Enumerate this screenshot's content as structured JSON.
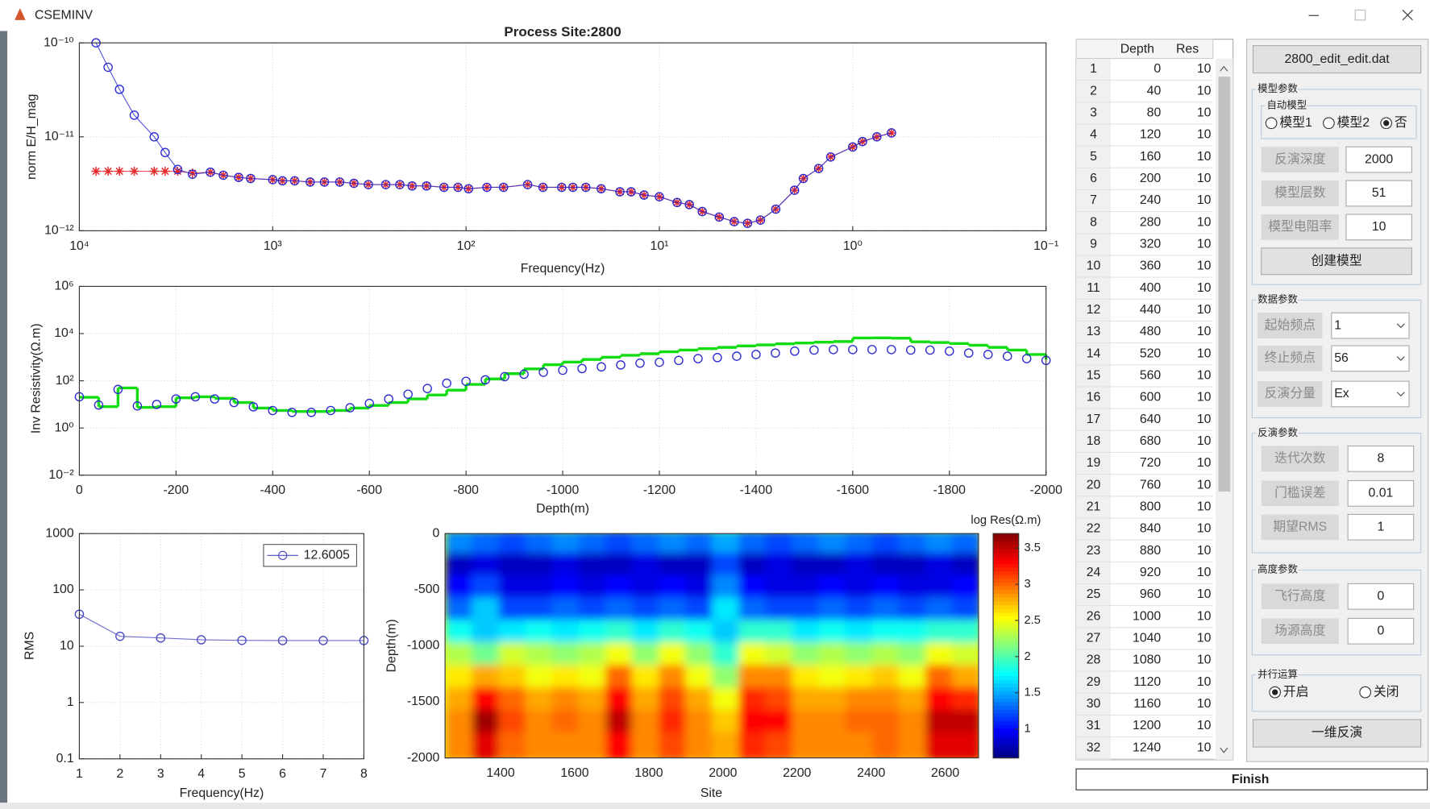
{
  "window": {
    "title": "CSEMINV"
  },
  "chart_data": [
    {
      "type": "line",
      "title": "Process Site:2800",
      "xlabel": "Frequency(Hz)",
      "ylabel": "norm E/H_mag",
      "xlog": true,
      "ylog": true,
      "grid": true,
      "xlim": [
        10000,
        0.1
      ],
      "ylim": [
        1e-12,
        1e-10
      ],
      "xticks": [
        {
          "value": 10000,
          "label": "10⁴"
        },
        {
          "value": 1000,
          "label": "10³"
        },
        {
          "value": 100,
          "label": "10²"
        },
        {
          "value": 10,
          "label": "10¹"
        },
        {
          "value": 1,
          "label": "10⁰"
        },
        {
          "value": 0.1,
          "label": "10⁻¹"
        }
      ],
      "yticks": [
        {
          "value": 1e-12,
          "label": "10⁻¹²"
        },
        {
          "value": 1e-11,
          "label": "10⁻¹¹"
        },
        {
          "value": 1e-10,
          "label": "10⁻¹⁰"
        }
      ],
      "x": [
        8200,
        7100,
        6200,
        5200,
        4100,
        3600,
        3100,
        2600,
        2100,
        1800,
        1500,
        1300,
        1000,
        890,
        770,
        640,
        540,
        450,
        380,
        320,
        260,
        220,
        190,
        160,
        130,
        110,
        97,
        78,
        64,
        48,
        40,
        32,
        28,
        24,
        20,
        16,
        14,
        12,
        10,
        8.1,
        7.0,
        6.0,
        4.9,
        4.1,
        3.5,
        3.0,
        2.5,
        2.0,
        1.8,
        1.5,
        1.3,
        1.0,
        0.89,
        0.75,
        0.63
      ],
      "series": [
        {
          "color": "#e8282b",
          "marker": "asterisk",
          "line": true,
          "values": [
            4.3e-12,
            4.3e-12,
            4.3e-12,
            4.3e-12,
            4.3e-12,
            4.3e-12,
            4.3e-12,
            4.1e-12,
            4.2e-12,
            3.9e-12,
            3.7e-12,
            3.6e-12,
            3.5e-12,
            3.4e-12,
            3.4e-12,
            3.3e-12,
            3.3e-12,
            3.3e-12,
            3.2e-12,
            3.1e-12,
            3.1e-12,
            3.1e-12,
            3e-12,
            3e-12,
            2.9e-12,
            2.9e-12,
            2.8e-12,
            2.9e-12,
            2.9e-12,
            3.1e-12,
            2.9e-12,
            2.9e-12,
            2.9e-12,
            2.9e-12,
            2.8e-12,
            2.6e-12,
            2.6e-12,
            2.4e-12,
            2.3e-12,
            2e-12,
            1.9e-12,
            1.6e-12,
            1.4e-12,
            1.25e-12,
            1.2e-12,
            1.3e-12,
            1.7e-12,
            2.7e-12,
            3.6e-12,
            4.6e-12,
            6.1e-12,
            7.8e-12,
            8.9e-12,
            1e-11,
            1.1e-11
          ]
        },
        {
          "color": "#2a2ad0",
          "marker": "circle",
          "line": true,
          "values": [
            1e-10,
            5.5e-11,
            3.2e-11,
            1.7e-11,
            1e-11,
            6.8e-12,
            4.5e-12,
            4e-12,
            4.2e-12,
            3.9e-12,
            3.7e-12,
            3.6e-12,
            3.5e-12,
            3.4e-12,
            3.4e-12,
            3.3e-12,
            3.3e-12,
            3.3e-12,
            3.2e-12,
            3.1e-12,
            3.1e-12,
            3.1e-12,
            3e-12,
            3e-12,
            2.9e-12,
            2.9e-12,
            2.8e-12,
            2.9e-12,
            2.9e-12,
            3.1e-12,
            2.9e-12,
            2.9e-12,
            2.9e-12,
            2.9e-12,
            2.8e-12,
            2.6e-12,
            2.6e-12,
            2.4e-12,
            2.3e-12,
            2e-12,
            1.9e-12,
            1.6e-12,
            1.4e-12,
            1.25e-12,
            1.2e-12,
            1.3e-12,
            1.7e-12,
            2.7e-12,
            3.6e-12,
            4.6e-12,
            6.1e-12,
            7.8e-12,
            8.9e-12,
            1e-11,
            1.1e-11
          ]
        }
      ]
    },
    {
      "type": "line",
      "xlabel": "Depth(m)",
      "ylabel": "Inv Resistivity(Ω.m)",
      "ylog": true,
      "grid": true,
      "xlim": [
        0,
        -2000
      ],
      "ylim": [
        0.01,
        1000000
      ],
      "xticks": [
        0,
        -200,
        -400,
        -600,
        -800,
        -1000,
        -1200,
        -1400,
        -1600,
        -1800,
        -2000
      ],
      "yticks": [
        {
          "value": 0.01,
          "label": "10⁻²"
        },
        {
          "value": 1,
          "label": "10⁰"
        },
        {
          "value": 100,
          "label": "10²"
        },
        {
          "value": 10000,
          "label": "10⁴"
        },
        {
          "value": 1000000,
          "label": "10⁶"
        }
      ],
      "x": [
        0,
        -40,
        -80,
        -120,
        -160,
        -200,
        -240,
        -280,
        -320,
        -360,
        -400,
        -440,
        -480,
        -520,
        -560,
        -600,
        -640,
        -680,
        -720,
        -760,
        -800,
        -840,
        -880,
        -920,
        -960,
        -1000,
        -1040,
        -1080,
        -1120,
        -1160,
        -1200,
        -1240,
        -1280,
        -1320,
        -1360,
        -1400,
        -1440,
        -1480,
        -1520,
        -1560,
        -1600,
        -1640,
        -1680,
        -1720,
        -1760,
        -1800,
        -1840,
        -1880,
        -1920,
        -1960,
        -2000
      ],
      "series": [
        {
          "color": "#11dd11",
          "step": true,
          "values": [
            20,
            8,
            50,
            7.5,
            8,
            19,
            21,
            18,
            12,
            7,
            5.5,
            5,
            5,
            5.5,
            7,
            9,
            12,
            17,
            25,
            40,
            70,
            120,
            200,
            320,
            480,
            620,
            800,
            1000,
            1200,
            1400,
            1700,
            2000,
            2300,
            2600,
            3000,
            3300,
            3700,
            4000,
            4300,
            4600,
            6500,
            6600,
            6400,
            4500,
            4200,
            3800,
            3200,
            2600,
            2000,
            1300,
            800
          ]
        },
        {
          "color": "#2a2ad0",
          "marker": "circle",
          "line": false,
          "values": [
            21,
            9.4,
            43,
            8.6,
            10,
            17,
            21,
            17,
            12,
            7.9,
            5.5,
            4.6,
            4.6,
            5.5,
            7.2,
            11,
            17,
            27,
            47,
            79,
            95,
            110,
            150,
            190,
            230,
            280,
            330,
            390,
            470,
            560,
            610,
            730,
            870,
            960,
            1100,
            1300,
            1500,
            1800,
            2000,
            2100,
            2100,
            2100,
            2100,
            2000,
            2000,
            1800,
            1500,
            1300,
            1100,
            870,
            730
          ]
        }
      ]
    },
    {
      "type": "line",
      "xlabel": "Frequency(Hz)",
      "ylabel": "RMS",
      "ylog": true,
      "grid": true,
      "legend": "upper right",
      "xlim": [
        1,
        8
      ],
      "ylim": [
        0.1,
        1000
      ],
      "xticks": [
        1,
        2,
        3,
        4,
        5,
        6,
        7,
        8
      ],
      "yticks": [
        0.1,
        1,
        10,
        100,
        1000
      ],
      "x": [
        1,
        2,
        3,
        4,
        5,
        6,
        7,
        8
      ],
      "series": [
        {
          "name": "12.6005",
          "color": "#4a4ac0",
          "marker": "circle",
          "line": true,
          "values": [
            37,
            15,
            14,
            13,
            12.7,
            12.6,
            12.6,
            12.6
          ]
        }
      ]
    },
    {
      "type": "heatmap",
      "xlabel": "Site",
      "ylabel": "Depth(m)",
      "colorbar_label": "log Res(Ω.m)",
      "colormap": "jet",
      "xlim": [
        1250,
        2690
      ],
      "ylim": [
        -2000,
        0
      ],
      "xticks": [
        1400,
        1600,
        1800,
        2000,
        2200,
        2400,
        2600
      ],
      "yticks": [
        0,
        -500,
        -1000,
        -1500,
        -2000
      ],
      "clim": [
        0.6,
        3.7
      ],
      "cticks": [
        1,
        1.5,
        2,
        2.5,
        3,
        3.5
      ],
      "x": [
        1290,
        1362,
        1434,
        1506,
        1578,
        1650,
        1722,
        1794,
        1866,
        1938,
        2010,
        2082,
        2154,
        2226,
        2298,
        2370,
        2442,
        2514,
        2586,
        2658
      ],
      "y": [
        -100,
        -300,
        -500,
        -700,
        -900,
        -1100,
        -1300,
        -1500,
        -1700,
        -1900
      ],
      "z": [
        [
          1.4,
          1.3,
          1.2,
          1.3,
          1.4,
          1.3,
          1.2,
          1.3,
          1.4,
          1.3,
          1.5,
          1.3,
          1.2,
          1.3,
          1.4,
          1.3,
          1.2,
          1.3,
          1.4,
          1.3
        ],
        [
          0.8,
          0.9,
          0.8,
          0.8,
          0.9,
          0.8,
          0.8,
          0.9,
          0.8,
          0.8,
          1.2,
          0.8,
          0.9,
          0.8,
          0.8,
          0.9,
          0.8,
          0.8,
          0.9,
          0.8
        ],
        [
          1.0,
          1.2,
          0.9,
          0.9,
          1.0,
          0.9,
          1.0,
          0.9,
          1.0,
          0.9,
          1.4,
          1.0,
          0.9,
          0.9,
          1.0,
          0.9,
          1.0,
          0.9,
          0.9,
          1.0
        ],
        [
          1.3,
          1.6,
          1.2,
          1.2,
          1.3,
          1.2,
          1.3,
          1.2,
          1.3,
          1.2,
          1.7,
          1.3,
          1.2,
          1.2,
          1.3,
          1.2,
          1.3,
          1.2,
          1.3,
          1.2
        ],
        [
          1.8,
          1.6,
          1.7,
          1.8,
          1.7,
          1.8,
          1.9,
          1.7,
          1.9,
          1.8,
          1.6,
          1.9,
          1.9,
          1.7,
          1.8,
          1.7,
          1.8,
          1.8,
          1.9,
          1.9
        ],
        [
          2.3,
          2.1,
          2.4,
          2.3,
          2.2,
          2.3,
          2.5,
          2.2,
          2.5,
          2.2,
          1.9,
          2.5,
          2.4,
          2.2,
          2.3,
          2.2,
          2.3,
          2.2,
          2.5,
          2.4
        ],
        [
          2.6,
          2.8,
          2.7,
          2.5,
          2.6,
          2.5,
          3.0,
          2.6,
          2.9,
          2.5,
          2.2,
          2.9,
          2.9,
          2.6,
          2.5,
          2.6,
          2.7,
          2.5,
          3.0,
          2.8
        ],
        [
          2.8,
          3.3,
          3.0,
          2.8,
          2.9,
          2.8,
          3.3,
          2.8,
          3.1,
          2.8,
          2.5,
          3.2,
          3.1,
          2.8,
          2.8,
          2.9,
          2.9,
          2.8,
          3.3,
          3.2
        ],
        [
          2.9,
          3.6,
          3.1,
          2.9,
          3.0,
          2.9,
          3.5,
          2.9,
          3.2,
          2.9,
          2.7,
          3.3,
          3.3,
          2.9,
          2.9,
          3.0,
          3.0,
          2.9,
          3.5,
          3.5
        ],
        [
          2.9,
          3.4,
          3.0,
          2.9,
          2.9,
          2.9,
          3.3,
          2.9,
          3.1,
          2.9,
          2.8,
          3.2,
          3.1,
          2.9,
          2.9,
          2.9,
          3.0,
          2.9,
          3.4,
          3.4
        ]
      ]
    }
  ],
  "table": {
    "headers": [
      "Depth",
      "Res"
    ],
    "rows": [
      [
        1,
        0,
        10
      ],
      [
        2,
        40,
        10
      ],
      [
        3,
        80,
        10
      ],
      [
        4,
        120,
        10
      ],
      [
        5,
        160,
        10
      ],
      [
        6,
        200,
        10
      ],
      [
        7,
        240,
        10
      ],
      [
        8,
        280,
        10
      ],
      [
        9,
        320,
        10
      ],
      [
        10,
        360,
        10
      ],
      [
        11,
        400,
        10
      ],
      [
        12,
        440,
        10
      ],
      [
        13,
        480,
        10
      ],
      [
        14,
        520,
        10
      ],
      [
        15,
        560,
        10
      ],
      [
        16,
        600,
        10
      ],
      [
        17,
        640,
        10
      ],
      [
        18,
        680,
        10
      ],
      [
        19,
        720,
        10
      ],
      [
        20,
        760,
        10
      ],
      [
        21,
        800,
        10
      ],
      [
        22,
        840,
        10
      ],
      [
        23,
        880,
        10
      ],
      [
        24,
        920,
        10
      ],
      [
        25,
        960,
        10
      ],
      [
        26,
        1000,
        10
      ],
      [
        27,
        1040,
        10
      ],
      [
        28,
        1080,
        10
      ],
      [
        29,
        1120,
        10
      ],
      [
        30,
        1160,
        10
      ],
      [
        31,
        1200,
        10
      ],
      [
        32,
        1240,
        10
      ]
    ]
  },
  "panel": {
    "file": "2800_edit_edit.dat",
    "model": {
      "title": "模型参数",
      "auto_title": "自动模型",
      "auto_options": [
        "模型1",
        "模型2",
        "否"
      ],
      "auto_selected": 2,
      "fields": [
        {
          "label": "反演深度",
          "value": 2000
        },
        {
          "label": "模型层数",
          "value": 51
        },
        {
          "label": "模型电阻率",
          "value": 10
        }
      ],
      "button": "创建模型"
    },
    "data": {
      "title": "数据参数",
      "fields": [
        {
          "label": "起始频点",
          "value": 1
        },
        {
          "label": "终止频点",
          "value": 56
        },
        {
          "label": "反演分量",
          "value": "Ex"
        }
      ]
    },
    "inversion": {
      "title": "反演参数",
      "fields": [
        {
          "label": "迭代次数",
          "value": 8
        },
        {
          "label": "门槛误差",
          "value": 0.01
        },
        {
          "label": "期望RMS",
          "value": 1
        }
      ]
    },
    "height": {
      "title": "高度参数",
      "fields": [
        {
          "label": "飞行高度",
          "value": 0
        },
        {
          "label": "场源高度",
          "value": 0
        }
      ]
    },
    "parallel": {
      "title": "并行运算",
      "options": [
        "开启",
        "关闭"
      ],
      "selected": 0
    },
    "run_button": "一维反演"
  },
  "finish_button": "Finish"
}
